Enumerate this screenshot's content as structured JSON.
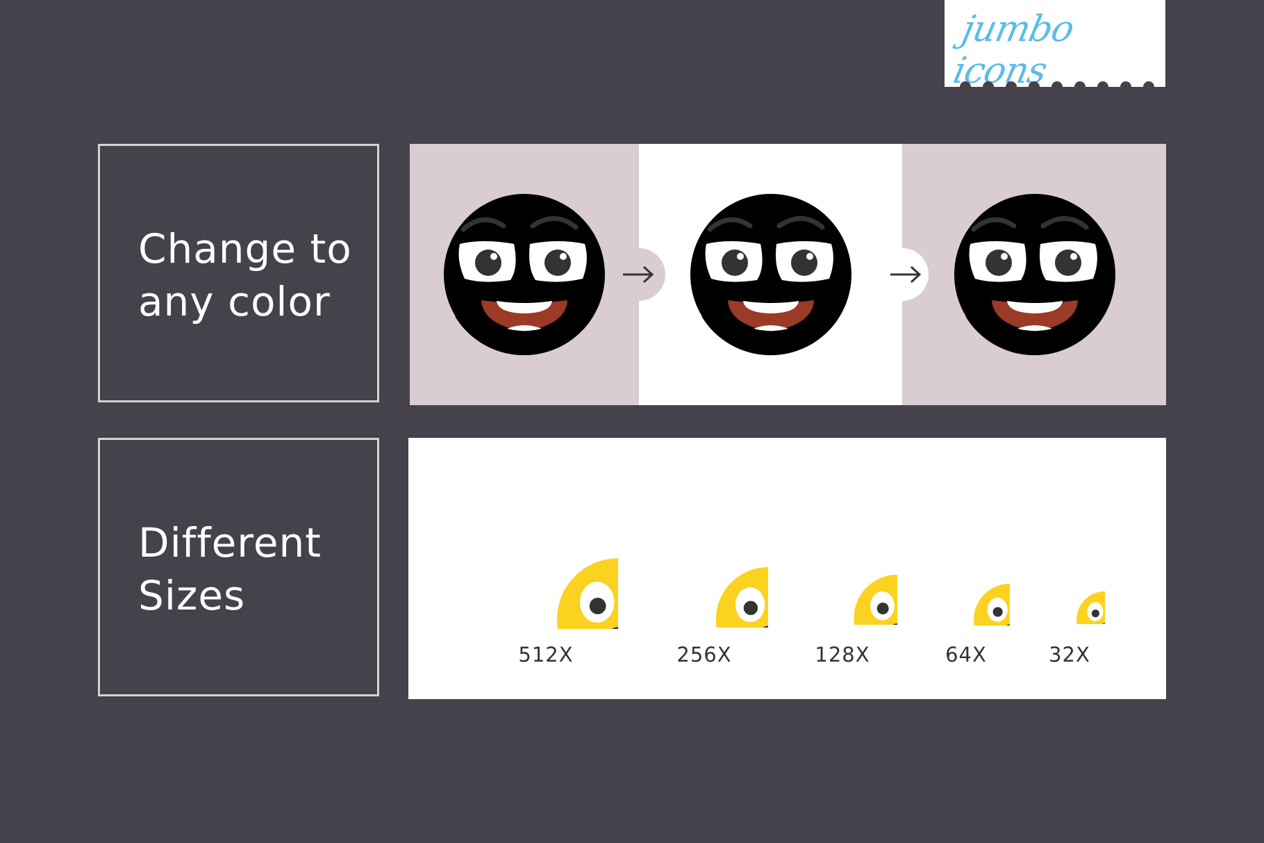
{
  "logo": {
    "text": "jumbo icons",
    "color": "#5bbcea"
  },
  "color_section": {
    "label_line1": "Change to",
    "label_line2": "any color",
    "variants": [
      {
        "color_name": "green",
        "face": "#bfd62f",
        "shade": "#b3c733",
        "bg": "#d9cdd2"
      },
      {
        "color_name": "yellow",
        "face": "#fbd21f",
        "shade": "#f8c21c",
        "bg": "#ffffff"
      },
      {
        "color_name": "orange",
        "face": "#f6941e",
        "shade": "#ec8623",
        "bg": "#d9cdd2"
      }
    ],
    "arrow_icon": "arrow-right-icon"
  },
  "size_section": {
    "label_line1": "Different",
    "label_line2": "Sizes",
    "sizes": [
      {
        "label": "512X"
      },
      {
        "label": "256X"
      },
      {
        "label": "128X"
      },
      {
        "label": "64X"
      },
      {
        "label": "32X"
      }
    ]
  }
}
